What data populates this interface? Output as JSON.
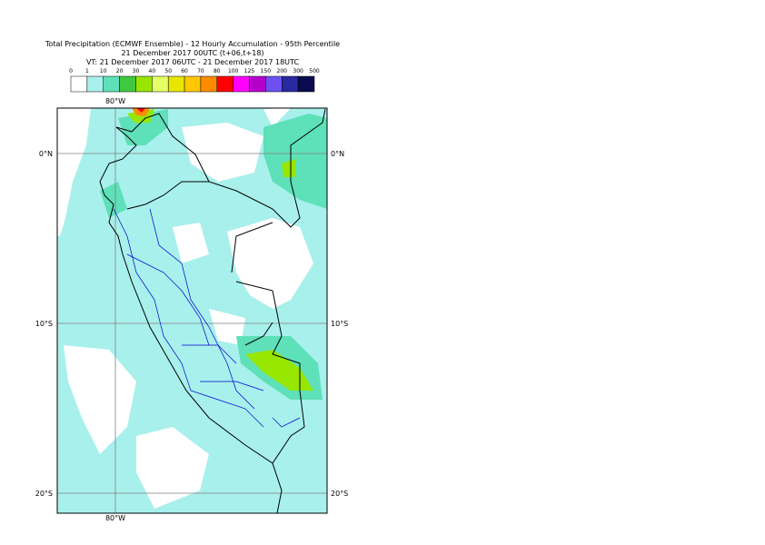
{
  "header": {
    "title": "Total Precipitation (ECMWF Ensemble) - 12 Hourly Accumulation - 95th Percentile",
    "subtitle": "21 December 2017 00UTC (t+06,t+18)",
    "valid_time": "VT: 21 December 2017 06UTC - 21 December 2017 18UTC"
  },
  "legend": {
    "labels": [
      0,
      1,
      10,
      20,
      30,
      40,
      50,
      60,
      70,
      80,
      100,
      125,
      150,
      200,
      300,
      500
    ],
    "colors": [
      "#ffffff",
      "#a8f0ec",
      "#5ee0b8",
      "#40c840",
      "#96e600",
      "#e6ff66",
      "#e6e600",
      "#ffc800",
      "#ff8c00",
      "#ff0000",
      "#ff00ff",
      "#b400c8",
      "#6e50f0",
      "#2828a0",
      "#0a0a50"
    ]
  },
  "map": {
    "longitude_labels": [
      "80°W"
    ],
    "latitude_labels": [
      "0°N",
      "10°S",
      "20°S"
    ]
  }
}
